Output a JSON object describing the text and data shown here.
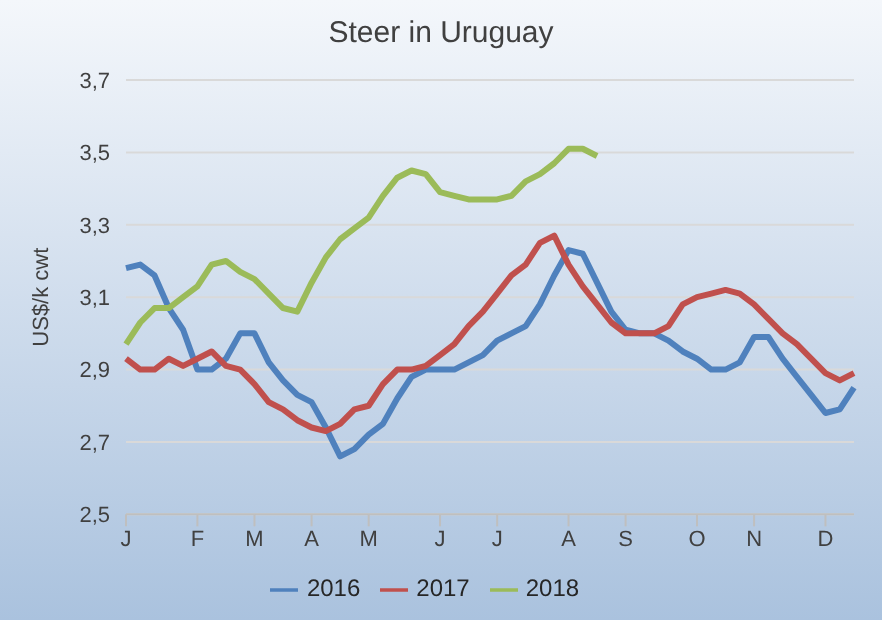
{
  "chart_data": {
    "type": "line",
    "title": "Steer in Uruguay",
    "ylabel": "US$/k cwt",
    "categories": [
      "J",
      null,
      null,
      null,
      null,
      "F",
      null,
      null,
      null,
      "M",
      null,
      null,
      null,
      "A",
      null,
      null,
      null,
      "M",
      null,
      null,
      null,
      null,
      "J",
      null,
      null,
      null,
      "J",
      null,
      null,
      null,
      null,
      "A",
      null,
      null,
      null,
      "S",
      null,
      null,
      null,
      null,
      "O",
      null,
      null,
      null,
      "N",
      null,
      null,
      null,
      null,
      "D",
      null,
      null
    ],
    "ylim": [
      2.5,
      3.7
    ],
    "yticks": [
      {
        "value": 2.5,
        "label": "2,5"
      },
      {
        "value": 2.7,
        "label": "2,7"
      },
      {
        "value": 2.9,
        "label": "2,9"
      },
      {
        "value": 3.1,
        "label": "3,1"
      },
      {
        "value": 3.3,
        "label": "3,3"
      },
      {
        "value": 3.5,
        "label": "3,5"
      },
      {
        "value": 3.7,
        "label": "3,7"
      }
    ],
    "grid": "y",
    "legend": "bottom",
    "series": [
      {
        "name": "2016",
        "color": "#4f81bd",
        "values": [
          3.18,
          3.19,
          3.16,
          3.07,
          3.01,
          2.9,
          2.9,
          2.93,
          3.0,
          3.0,
          2.92,
          2.87,
          2.83,
          2.81,
          2.74,
          2.66,
          2.68,
          2.72,
          2.75,
          2.82,
          2.88,
          2.9,
          2.9,
          2.9,
          2.92,
          2.94,
          2.98,
          3.0,
          3.02,
          3.08,
          3.16,
          3.23,
          3.22,
          3.14,
          3.06,
          3.01,
          3.0,
          3.0,
          2.98,
          2.95,
          2.93,
          2.9,
          2.9,
          2.92,
          2.99,
          2.99,
          2.93,
          2.88,
          2.83,
          2.78,
          2.79,
          2.85
        ]
      },
      {
        "name": "2017",
        "color": "#c0504d",
        "values": [
          2.93,
          2.9,
          2.9,
          2.93,
          2.91,
          2.93,
          2.95,
          2.91,
          2.9,
          2.86,
          2.81,
          2.79,
          2.76,
          2.74,
          2.73,
          2.75,
          2.79,
          2.8,
          2.86,
          2.9,
          2.9,
          2.91,
          2.94,
          2.97,
          3.02,
          3.06,
          3.11,
          3.16,
          3.19,
          3.25,
          3.27,
          3.19,
          3.13,
          3.08,
          3.03,
          3.0,
          3.0,
          3.0,
          3.02,
          3.08,
          3.1,
          3.11,
          3.12,
          3.11,
          3.08,
          3.04,
          3.0,
          2.97,
          2.93,
          2.89,
          2.87,
          2.89
        ]
      },
      {
        "name": "2018",
        "color": "#9bbb59",
        "values": [
          2.97,
          3.03,
          3.07,
          3.07,
          3.1,
          3.13,
          3.19,
          3.2,
          3.17,
          3.15,
          3.11,
          3.07,
          3.06,
          3.14,
          3.21,
          3.26,
          3.29,
          3.32,
          3.38,
          3.43,
          3.45,
          3.44,
          3.39,
          3.38,
          3.37,
          3.37,
          3.37,
          3.38,
          3.42,
          3.44,
          3.47,
          3.51,
          3.51,
          3.49,
          null,
          null,
          null,
          null,
          null,
          null,
          null,
          null,
          null,
          null,
          null,
          null,
          null,
          null,
          null,
          null,
          null,
          null
        ]
      }
    ]
  }
}
